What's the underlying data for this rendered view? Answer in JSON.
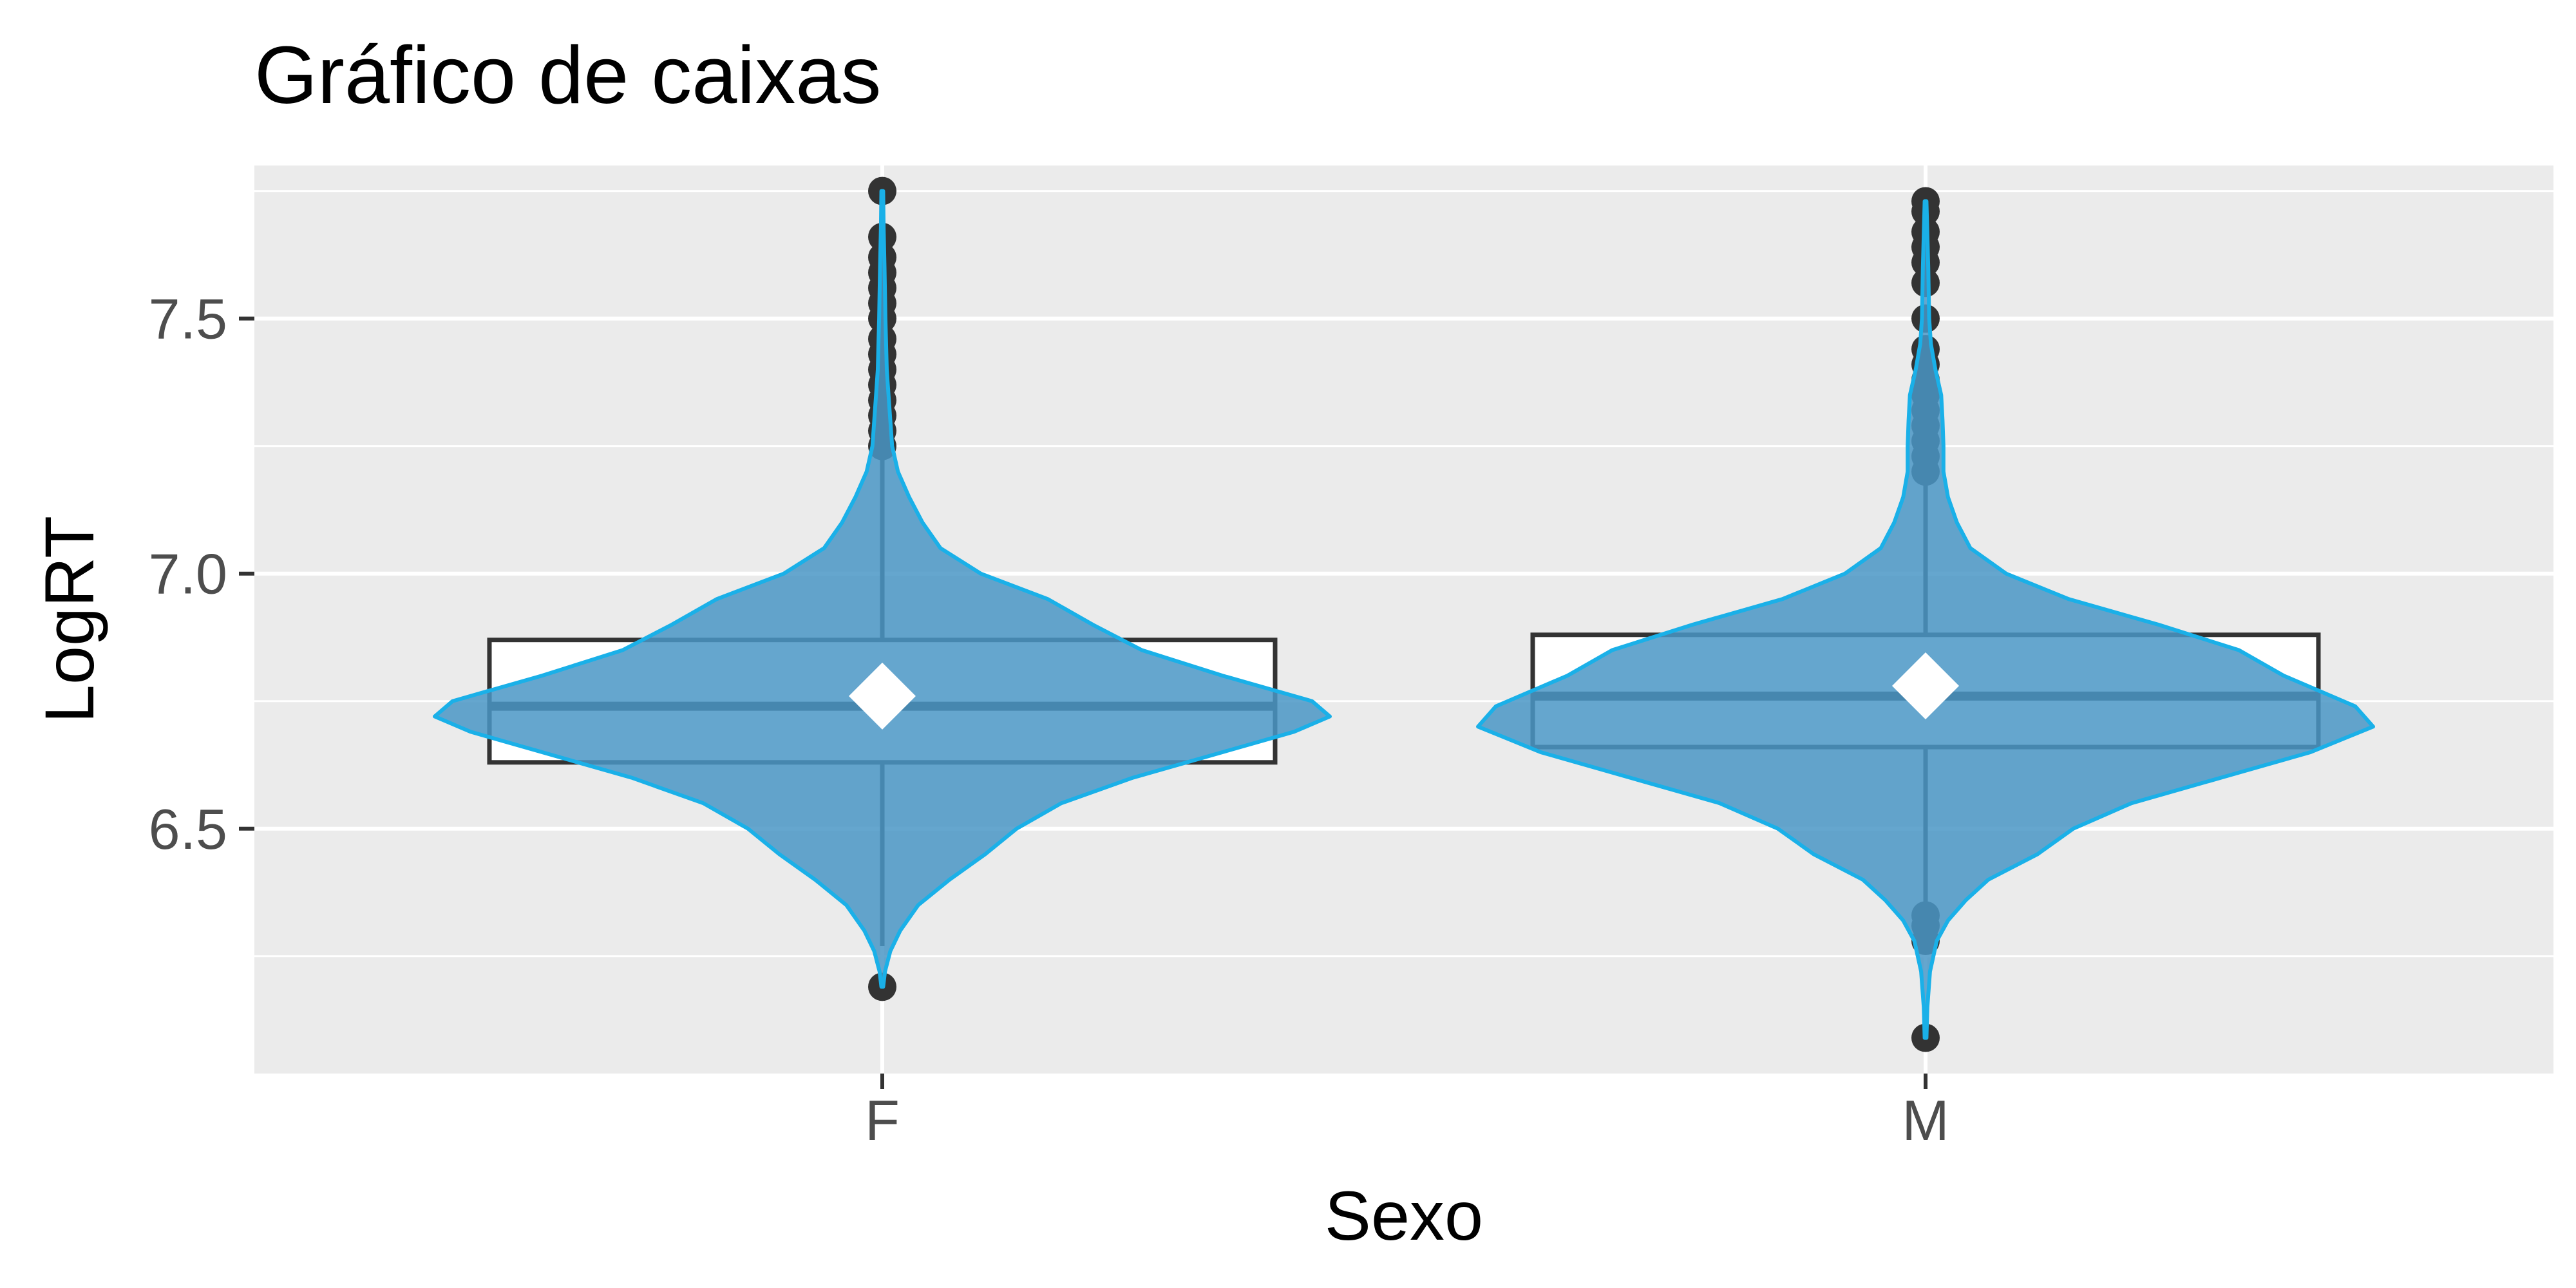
{
  "chart_data": {
    "type": "box",
    "title": "Gráfico de caixas",
    "xlabel": "Sexo",
    "ylabel": "LogRT",
    "ylim": [
      6.02,
      7.8
    ],
    "y_ticks": [
      6.5,
      7.0,
      7.5
    ],
    "y_tick_labels": [
      "6.5",
      "7.0",
      "7.5"
    ],
    "categories": [
      "F",
      "M"
    ],
    "grid": true,
    "colors": {
      "panel": "#ebebeb",
      "grid": "#ffffff",
      "violin_fill": "#4a97c6",
      "violin_stroke": "#1ab0e8",
      "box_line": "#333333",
      "box_line_dark": "#1c5a85",
      "outlier": "#333333",
      "mean_marker": "#ffffff"
    },
    "boxes": [
      {
        "category": "F",
        "q1": 6.63,
        "median": 6.74,
        "q3": 6.87,
        "whisker_low": 6.27,
        "whisker_high": 7.23,
        "mean": 6.76,
        "outliers": [
          6.19,
          7.25,
          7.28,
          7.31,
          7.34,
          7.37,
          7.4,
          7.43,
          7.46,
          7.5,
          7.53,
          7.56,
          7.59,
          7.62,
          7.66,
          7.75
        ]
      },
      {
        "category": "M",
        "q1": 6.66,
        "median": 6.76,
        "q3": 6.88,
        "whisker_low": 6.35,
        "whisker_high": 7.19,
        "mean": 6.78,
        "outliers": [
          6.09,
          6.28,
          6.31,
          6.33,
          7.2,
          7.23,
          7.26,
          7.29,
          7.32,
          7.35,
          7.38,
          7.41,
          7.44,
          7.5,
          7.57,
          7.61,
          7.64,
          7.67,
          7.71,
          7.73
        ]
      }
    ],
    "violins": [
      {
        "category": "F",
        "profile": [
          [
            6.19,
            0.002
          ],
          [
            6.22,
            0.006
          ],
          [
            6.26,
            0.018
          ],
          [
            6.3,
            0.04
          ],
          [
            6.35,
            0.08
          ],
          [
            6.4,
            0.15
          ],
          [
            6.45,
            0.23
          ],
          [
            6.5,
            0.3
          ],
          [
            6.55,
            0.4
          ],
          [
            6.6,
            0.56
          ],
          [
            6.65,
            0.76
          ],
          [
            6.69,
            0.92
          ],
          [
            6.72,
            1.0
          ],
          [
            6.75,
            0.96
          ],
          [
            6.8,
            0.76
          ],
          [
            6.85,
            0.58
          ],
          [
            6.9,
            0.47
          ],
          [
            6.95,
            0.37
          ],
          [
            7.0,
            0.22
          ],
          [
            7.05,
            0.13
          ],
          [
            7.1,
            0.09
          ],
          [
            7.15,
            0.06
          ],
          [
            7.2,
            0.035
          ],
          [
            7.25,
            0.022
          ],
          [
            7.3,
            0.018
          ],
          [
            7.35,
            0.014
          ],
          [
            7.4,
            0.01
          ],
          [
            7.5,
            0.007
          ],
          [
            7.6,
            0.005
          ],
          [
            7.68,
            0.003
          ],
          [
            7.75,
            0.002
          ]
        ]
      },
      {
        "category": "M",
        "profile": [
          [
            6.09,
            0.002
          ],
          [
            6.15,
            0.004
          ],
          [
            6.22,
            0.01
          ],
          [
            6.28,
            0.025
          ],
          [
            6.32,
            0.05
          ],
          [
            6.36,
            0.09
          ],
          [
            6.4,
            0.14
          ],
          [
            6.45,
            0.25
          ],
          [
            6.5,
            0.33
          ],
          [
            6.55,
            0.46
          ],
          [
            6.6,
            0.66
          ],
          [
            6.65,
            0.86
          ],
          [
            6.7,
            1.0
          ],
          [
            6.74,
            0.96
          ],
          [
            6.8,
            0.8
          ],
          [
            6.85,
            0.7
          ],
          [
            6.9,
            0.52
          ],
          [
            6.95,
            0.32
          ],
          [
            7.0,
            0.18
          ],
          [
            7.05,
            0.1
          ],
          [
            7.1,
            0.07
          ],
          [
            7.15,
            0.05
          ],
          [
            7.2,
            0.04
          ],
          [
            7.25,
            0.04
          ],
          [
            7.3,
            0.038
          ],
          [
            7.35,
            0.035
          ],
          [
            7.4,
            0.022
          ],
          [
            7.45,
            0.012
          ],
          [
            7.5,
            0.008
          ],
          [
            7.6,
            0.006
          ],
          [
            7.73,
            0.002
          ]
        ]
      }
    ]
  }
}
